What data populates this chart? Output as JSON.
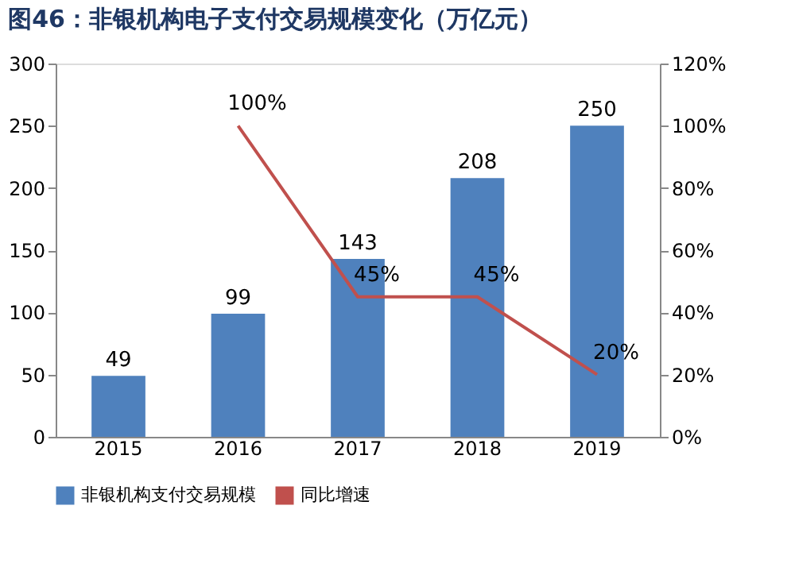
{
  "chart_data": {
    "type": "bar",
    "title": "图46：非银机构电子支付交易规模变化（万亿元）",
    "categories": [
      "2015",
      "2016",
      "2017",
      "2018",
      "2019"
    ],
    "series": [
      {
        "name": "非银机构支付交易规模",
        "color": "#4f81bd",
        "values": [
          49,
          99,
          143,
          208,
          250
        ],
        "value_labels": [
          "49",
          "99",
          "143",
          "208",
          "250"
        ]
      },
      {
        "name": "同比增速",
        "type": "line",
        "axis": "y2",
        "color": "#c0504d",
        "values": [
          null,
          100,
          45,
          45,
          20
        ],
        "value_labels": [
          null,
          "100%",
          "45%",
          "45%",
          "20%"
        ]
      }
    ],
    "ylim": [
      0,
      300
    ],
    "yticks": [
      0,
      50,
      100,
      150,
      200,
      250,
      300
    ],
    "y2lim": [
      0,
      120
    ],
    "y2ticks": [
      {
        "value": 0,
        "label": "0%"
      },
      {
        "value": 20,
        "label": "20%"
      },
      {
        "value": 40,
        "label": "40%"
      },
      {
        "value": 60,
        "label": "60%"
      },
      {
        "value": 80,
        "label": "80%"
      },
      {
        "value": 100,
        "label": "100%"
      },
      {
        "value": 120,
        "label": "120%"
      }
    ],
    "grid": false,
    "legend": "bottom",
    "marker": "none",
    "line_style": "solid"
  }
}
